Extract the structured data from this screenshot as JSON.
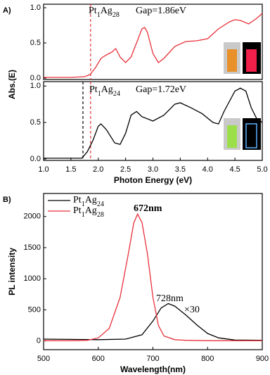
{
  "chart_data": [
    {
      "type": "line",
      "panel_label": "A)",
      "ylabel": "Abs.(E)",
      "xlim": [
        1.0,
        5.0
      ],
      "ylim": [
        -0.02,
        1.05
      ],
      "yticks": [
        {
          "value": 0.0,
          "label": "0.0"
        },
        {
          "value": 0.5,
          "label": "0.5"
        },
        {
          "value": 1.0,
          "label": "1.0"
        }
      ],
      "series": [
        {
          "name": "Pt1Ag28",
          "color": "#e8303a",
          "x": [
            1.0,
            1.5,
            1.75,
            1.85,
            1.95,
            2.05,
            2.15,
            2.25,
            2.32,
            2.4,
            2.5,
            2.6,
            2.7,
            2.8,
            2.85,
            2.9,
            3.0,
            3.1,
            3.2,
            3.4,
            3.6,
            3.8,
            4.0,
            4.2,
            4.4,
            4.5,
            4.6,
            4.75,
            4.9,
            5.0
          ],
          "values": [
            0.01,
            0.01,
            0.02,
            0.05,
            0.15,
            0.28,
            0.33,
            0.37,
            0.42,
            0.3,
            0.22,
            0.3,
            0.5,
            0.7,
            0.72,
            0.65,
            0.35,
            0.22,
            0.28,
            0.45,
            0.52,
            0.53,
            0.56,
            0.7,
            0.8,
            0.83,
            0.82,
            0.77,
            0.85,
            0.92
          ]
        }
      ],
      "markers": [
        {
          "x": 1.86,
          "color": "#e8303a"
        }
      ],
      "annotations": [
        "Gap=1.86eV"
      ]
    },
    {
      "type": "line",
      "xlabel": "Photon Energy (eV)",
      "xlim": [
        1.0,
        5.0
      ],
      "ylim": [
        -0.02,
        1.06
      ],
      "xticks": [
        {
          "value": 1.0,
          "label": "1.0"
        },
        {
          "value": 1.5,
          "label": "1.5"
        },
        {
          "value": 2.0,
          "label": "2.0"
        },
        {
          "value": 2.5,
          "label": "2.5"
        },
        {
          "value": 3.0,
          "label": "3.0"
        },
        {
          "value": 3.5,
          "label": "3.5"
        },
        {
          "value": 4.0,
          "label": "4.0"
        },
        {
          "value": 4.5,
          "label": "4.5"
        },
        {
          "value": 5.0,
          "label": "5.0"
        }
      ],
      "yticks": [
        {
          "value": 0.0,
          "label": "0.0"
        },
        {
          "value": 0.5,
          "label": "0.5"
        },
        {
          "value": 1.0,
          "label": "1.0"
        }
      ],
      "series": [
        {
          "name": "Pt1Ag24",
          "color": "#000000",
          "x": [
            1.0,
            1.5,
            1.7,
            1.8,
            1.9,
            2.0,
            2.05,
            2.15,
            2.3,
            2.4,
            2.5,
            2.6,
            2.7,
            2.8,
            3.0,
            3.2,
            3.4,
            3.5,
            3.7,
            3.9,
            4.1,
            4.2,
            4.3,
            4.5,
            4.6,
            4.7,
            4.8,
            4.9,
            5.0
          ],
          "values": [
            0.01,
            0.01,
            0.01,
            0.1,
            0.25,
            0.45,
            0.48,
            0.4,
            0.22,
            0.2,
            0.35,
            0.6,
            0.65,
            0.58,
            0.52,
            0.6,
            0.75,
            0.77,
            0.7,
            0.62,
            0.5,
            0.48,
            0.65,
            0.93,
            0.97,
            0.93,
            0.7,
            0.55,
            0.5
          ]
        }
      ],
      "markers": [
        {
          "x": 1.72,
          "color": "#000000"
        },
        {
          "x": 1.86,
          "color": "#e8303a"
        }
      ],
      "annotations": [
        "Gap=1.72eV"
      ]
    },
    {
      "type": "line",
      "panel_label": "B)",
      "xlabel": "Wavelength(nm)",
      "ylabel": "PL intensity",
      "xlim": [
        500,
        900
      ],
      "ylim": [
        -140,
        2370
      ],
      "xticks": [
        500,
        600,
        700,
        800,
        900
      ],
      "yticks": [
        0,
        500,
        1000,
        1500,
        2000
      ],
      "series": [
        {
          "name": "Pt1Ag24",
          "color": "#000000",
          "x": [
            500,
            550,
            600,
            650,
            680,
            700,
            715,
            728,
            740,
            760,
            780,
            800,
            820,
            850,
            900
          ],
          "values": [
            30,
            25,
            20,
            30,
            100,
            320,
            530,
            600,
            560,
            420,
            260,
            120,
            50,
            15,
            10
          ]
        },
        {
          "name": "Pt1Ag28",
          "color": "#e8303a",
          "x": [
            500,
            550,
            580,
            600,
            620,
            640,
            655,
            665,
            672,
            680,
            690,
            700,
            710,
            720,
            740,
            760,
            800,
            900
          ],
          "values": [
            5,
            5,
            10,
            50,
            200,
            700,
            1400,
            1900,
            2040,
            1900,
            1400,
            700,
            250,
            80,
            20,
            10,
            5,
            5
          ]
        }
      ],
      "annotations": [
        "672nm",
        "728nm",
        "×30"
      ]
    }
  ]
}
